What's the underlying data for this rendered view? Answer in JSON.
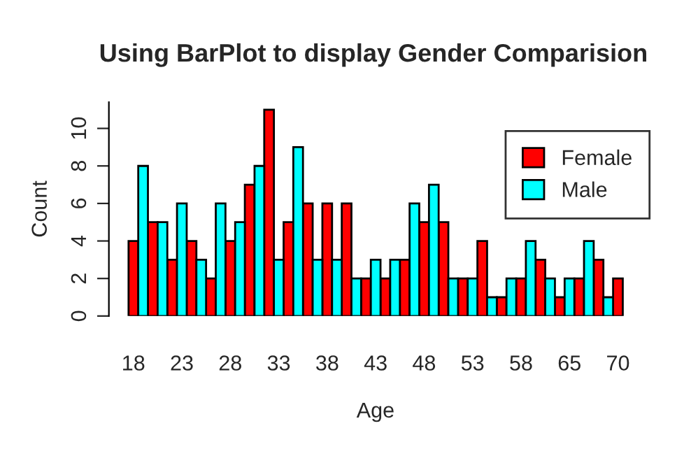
{
  "chart_data": {
    "type": "bar",
    "title": "Using BarPlot to display Gender Comparision",
    "xlabel": "Age",
    "ylabel": "Count",
    "categories": [
      "18",
      null,
      null,
      null,
      null,
      "23",
      null,
      null,
      null,
      null,
      "28",
      null,
      null,
      null,
      null,
      "33",
      null,
      null,
      null,
      null,
      "38",
      null,
      null,
      null,
      null,
      "43",
      null,
      null,
      null,
      null,
      "48",
      null,
      null,
      null,
      null,
      "53",
      null,
      null,
      null,
      null,
      "58",
      null,
      null,
      null,
      null,
      "65",
      null,
      null,
      null,
      null,
      "70"
    ],
    "series": [
      {
        "name": "Female",
        "color": "#ff0000",
        "values": [
          4,
          null,
          5,
          null,
          3,
          null,
          4,
          null,
          2,
          null,
          4,
          null,
          7,
          null,
          11,
          null,
          5,
          null,
          6,
          null,
          6,
          null,
          6,
          null,
          2,
          null,
          2,
          null,
          3,
          null,
          5,
          null,
          5,
          null,
          2,
          null,
          4,
          null,
          1,
          null,
          2,
          null,
          3,
          null,
          1,
          null,
          2,
          null,
          3,
          null,
          2
        ]
      },
      {
        "name": "Male",
        "color": "#00ffff",
        "values": [
          null,
          8,
          null,
          5,
          null,
          6,
          null,
          3,
          null,
          6,
          null,
          5,
          null,
          8,
          null,
          3,
          null,
          9,
          null,
          3,
          null,
          3,
          null,
          2,
          null,
          3,
          null,
          3,
          null,
          6,
          null,
          7,
          null,
          2,
          null,
          2,
          null,
          1,
          null,
          2,
          null,
          4,
          null,
          2,
          null,
          2,
          null,
          4,
          null,
          1,
          null
        ]
      }
    ],
    "ylim": [
      0,
      11.4
    ],
    "yticks": [
      0,
      2,
      4,
      6,
      8,
      10
    ],
    "grid": false,
    "legend": "top right"
  }
}
